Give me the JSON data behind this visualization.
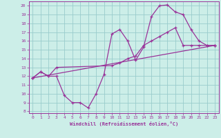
{
  "xlabel": "Windchill (Refroidissement éolien,°C)",
  "bg_color": "#cceee8",
  "line_color": "#993399",
  "grid_color": "#99cccc",
  "xlim": [
    -0.5,
    23.5
  ],
  "ylim": [
    7.8,
    20.5
  ],
  "xticks": [
    0,
    1,
    2,
    3,
    4,
    5,
    6,
    7,
    8,
    9,
    10,
    11,
    12,
    13,
    14,
    15,
    16,
    17,
    18,
    19,
    20,
    21,
    22,
    23
  ],
  "yticks": [
    8,
    9,
    10,
    11,
    12,
    13,
    14,
    15,
    16,
    17,
    18,
    19,
    20
  ],
  "line1_x": [
    0,
    1,
    2,
    3,
    4,
    5,
    6,
    7,
    8,
    9,
    10,
    11,
    12,
    13,
    14,
    15,
    16,
    17,
    18,
    19,
    20,
    21,
    22,
    23
  ],
  "line1_y": [
    11.8,
    12.5,
    12.0,
    12.0,
    9.8,
    9.0,
    9.0,
    8.4,
    10.0,
    12.2,
    16.8,
    17.3,
    16.0,
    13.8,
    15.3,
    18.8,
    20.0,
    20.1,
    19.3,
    19.0,
    17.3,
    16.0,
    15.5,
    15.5
  ],
  "line2_x": [
    0,
    1,
    2,
    3,
    10,
    11,
    12,
    13,
    14,
    15,
    16,
    17,
    18,
    19,
    20,
    21,
    22,
    23
  ],
  "line2_y": [
    11.8,
    12.5,
    12.0,
    13.0,
    13.2,
    13.5,
    14.0,
    14.3,
    15.5,
    16.0,
    16.5,
    17.0,
    17.5,
    15.5,
    15.5,
    15.5,
    15.5,
    15.5
  ],
  "line3_x": [
    0,
    23
  ],
  "line3_y": [
    11.8,
    15.5
  ],
  "marker": "+"
}
